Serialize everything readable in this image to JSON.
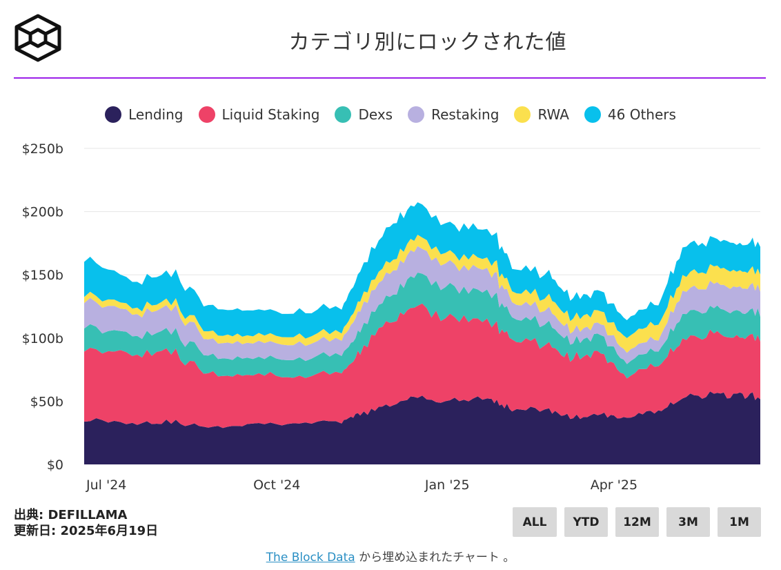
{
  "header": {
    "title": "カテゴリ別にロックされた値"
  },
  "chart_data": {
    "type": "area",
    "stacked": true,
    "title": "カテゴリ別にロックされた値",
    "y_unit_prefix": "$",
    "y_unit_suffix": "b",
    "ylim": [
      0,
      250
    ],
    "yticks": [
      "$0",
      "$50b",
      "$100b",
      "$150b",
      "$200b",
      "$250b"
    ],
    "xticks": [
      "Jul '24",
      "Oct '24",
      "Jan '25",
      "Apr '25"
    ],
    "x_range": [
      "2024-06-19",
      "2025-06-19"
    ],
    "legend_position": "top",
    "categories": [
      "2024-06-19",
      "2024-07-15",
      "2024-08-05",
      "2024-08-25",
      "2024-09-15",
      "2024-10-10",
      "2024-11-05",
      "2024-11-15",
      "2024-12-01",
      "2024-12-16",
      "2025-01-05",
      "2025-01-25",
      "2025-02-05",
      "2025-02-25",
      "2025-03-10",
      "2025-03-25",
      "2025-04-08",
      "2025-04-25",
      "2025-05-08",
      "2025-05-25",
      "2025-06-08",
      "2025-06-19"
    ],
    "series": [
      {
        "name": "Lending",
        "color": "#2b215c",
        "values": [
          36,
          33,
          34,
          29,
          32,
          33,
          33,
          40,
          46,
          54,
          50,
          52,
          44,
          43,
          37,
          39,
          38,
          42,
          54,
          55,
          54,
          54
        ]
      },
      {
        "name": "Liquid Staking",
        "color": "#ee4267",
        "values": [
          55,
          55,
          55,
          42,
          39,
          37,
          38,
          50,
          66,
          70,
          67,
          60,
          55,
          52,
          47,
          49,
          33,
          36,
          46,
          47,
          46,
          47
        ]
      },
      {
        "name": "Dexs",
        "color": "#37bfb4",
        "values": [
          18,
          15,
          16,
          14,
          13,
          14,
          14,
          17,
          20,
          25,
          23,
          23,
          18,
          16,
          13,
          14,
          11,
          12,
          20,
          20,
          20,
          20
        ]
      },
      {
        "name": "Restaking",
        "color": "#b8b0e0",
        "values": [
          20,
          18,
          18,
          13,
          12,
          12,
          12,
          16,
          18,
          20,
          18,
          17,
          12,
          11,
          9,
          9,
          9,
          9,
          18,
          19,
          19,
          19
        ]
      },
      {
        "name": "RWA",
        "color": "#fbe04e",
        "values": [
          5,
          5,
          5,
          6,
          6,
          6,
          6,
          8,
          9,
          9,
          8,
          9,
          9,
          10,
          10,
          10,
          11,
          12,
          12,
          13,
          13,
          13
        ]
      },
      {
        "name": "46 Others",
        "color": "#08c0ec",
        "values": [
          28,
          21,
          23,
          20,
          20,
          19,
          19,
          23,
          28,
          27,
          23,
          23,
          18,
          18,
          16,
          16,
          14,
          16,
          23,
          22,
          22,
          21
        ]
      }
    ]
  },
  "legend": [
    {
      "label": "Lending",
      "color": "#2b215c"
    },
    {
      "label": "Liquid Staking",
      "color": "#ee4267"
    },
    {
      "label": "Dexs",
      "color": "#37bfb4"
    },
    {
      "label": "Restaking",
      "color": "#b8b0e0"
    },
    {
      "label": "RWA",
      "color": "#fbe04e"
    },
    {
      "label": "46 Others",
      "color": "#08c0ec"
    }
  ],
  "footer": {
    "source": "出典: DEFILLAMA",
    "updated": "更新日: 2025年6月19日",
    "embed_link": "The Block Data",
    "embed_text": "から埋め込まれたチャート 。"
  },
  "range_buttons": [
    "ALL",
    "YTD",
    "12M",
    "3M",
    "1M"
  ],
  "colors": {
    "accent_rule": "#9b1fe8",
    "button_bg": "#d9d9d9",
    "link": "#2a8fc4"
  }
}
